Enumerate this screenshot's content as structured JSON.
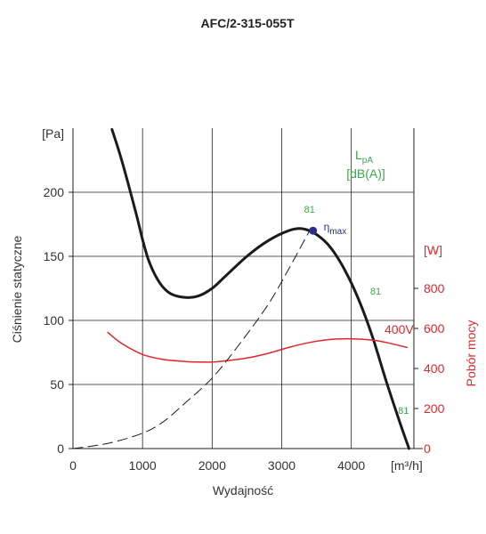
{
  "chart_data": {
    "type": "line",
    "title": "AFC/2-315-055T",
    "xlabel": "Wydajność",
    "ylabel": "Ciśnienie statyczne",
    "y2label": "Pobór mocy",
    "x_unit": "[m³/h]",
    "y_unit": "[Pa]",
    "y2_unit": "[W]",
    "xlim": [
      0,
      4900
    ],
    "ylim": [
      0,
      250
    ],
    "y2lim": [
      0,
      1600
    ],
    "x_ticks": [
      0,
      1000,
      2000,
      3000,
      4000
    ],
    "y_ticks": [
      0,
      50,
      100,
      150,
      200
    ],
    "y2_ticks": [
      0,
      200,
      400,
      600,
      800
    ],
    "grid": true,
    "colors": {
      "pressure": "#1a1a1a",
      "power": "#e0262b",
      "system": "#1a1a1a",
      "noise": "#3aa84a",
      "eta": "#2a2f8f"
    },
    "series": [
      {
        "axis": "left",
        "points": [
          [
            560,
            249
          ],
          [
            700,
            225
          ],
          [
            900,
            185
          ],
          [
            1000,
            163
          ],
          [
            1100,
            145
          ],
          [
            1250,
            129
          ],
          [
            1400,
            121
          ],
          [
            1600,
            118
          ],
          [
            1800,
            119
          ],
          [
            2000,
            125
          ],
          [
            2200,
            135
          ],
          [
            2500,
            150
          ],
          [
            2800,
            162
          ],
          [
            3100,
            170
          ],
          [
            3300,
            171.5
          ],
          [
            3500,
            167
          ],
          [
            3700,
            157
          ],
          [
            3900,
            140
          ],
          [
            4100,
            117
          ],
          [
            4300,
            88
          ],
          [
            4500,
            53
          ],
          [
            4700,
            20
          ],
          [
            4830,
            0
          ]
        ]
      },
      {
        "axis": "right",
        "points": [
          [
            500,
            580
          ],
          [
            700,
            525
          ],
          [
            1000,
            470
          ],
          [
            1300,
            445
          ],
          [
            1600,
            435
          ],
          [
            1800,
            432
          ],
          [
            2000,
            432
          ],
          [
            2200,
            438
          ],
          [
            2500,
            452
          ],
          [
            2800,
            475
          ],
          [
            3100,
            505
          ],
          [
            3400,
            530
          ],
          [
            3700,
            545
          ],
          [
            4000,
            548
          ],
          [
            4300,
            542
          ],
          [
            4500,
            530
          ],
          [
            4800,
            505
          ]
        ]
      },
      {
        "axis": "left",
        "dashed": true,
        "points": [
          [
            0,
            0
          ],
          [
            500,
            4
          ],
          [
            1000,
            12
          ],
          [
            1300,
            21
          ],
          [
            1600,
            35
          ],
          [
            2000,
            55
          ],
          [
            2400,
            82
          ],
          [
            2800,
            112
          ],
          [
            3100,
            140
          ],
          [
            3400,
            170
          ]
        ]
      }
    ],
    "eta_point": {
      "x": 3450,
      "y": 170
    },
    "annotations": {
      "lpa_label_main": "L",
      "lpa_label_sub": "pA",
      "lpa_unit": "[dB(A)]",
      "eta_main": "η",
      "eta_sub": "max",
      "voltage": "400V",
      "noise_values": [
        {
          "x": 3400,
          "y": 184,
          "text": "81"
        },
        {
          "x": 4350,
          "y": 120,
          "text": "81"
        },
        {
          "x": 4750,
          "y": 27,
          "text": "81"
        }
      ]
    }
  }
}
